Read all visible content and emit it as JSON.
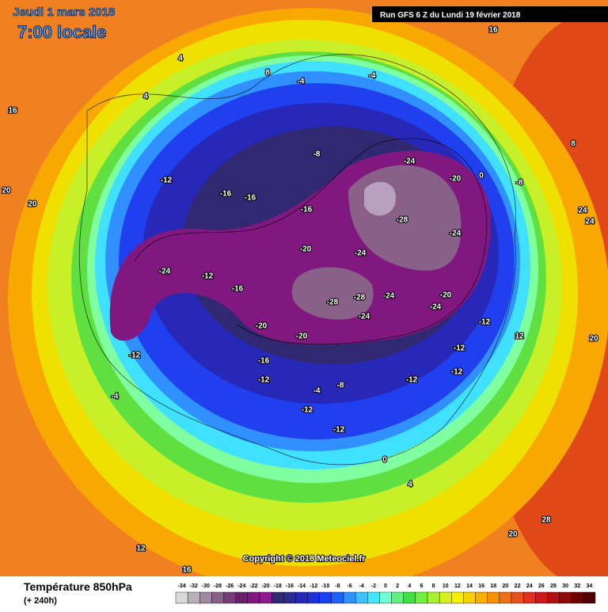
{
  "header": {
    "date": "Jeudi 1 mars 2018",
    "time": "7:00 locale",
    "run": "Run GFS 6 Z du Lundi 19 février 2018"
  },
  "copyright": "Copyright © 2018 Meteociel.fr",
  "footer": {
    "title": "Température 850hPa",
    "lead": "(+ 240h)"
  },
  "scale": {
    "values": [
      -34,
      -32,
      -30,
      -28,
      -26,
      -24,
      -22,
      -20,
      -18,
      -16,
      -14,
      -12,
      -10,
      -8,
      -6,
      -4,
      -2,
      0,
      2,
      4,
      6,
      8,
      10,
      12,
      14,
      16,
      18,
      20,
      22,
      24,
      26,
      28,
      30,
      32,
      34
    ],
    "colors": [
      "#d8d8d8",
      "#b8b0b8",
      "#a088a0",
      "#886088",
      "#783c78",
      "#682068",
      "#801880",
      "#901890",
      "#302870",
      "#2c2c90",
      "#2828b8",
      "#2030d8",
      "#1840f0",
      "#2060ff",
      "#3090ff",
      "#40c0ff",
      "#40e8ff",
      "#70ffd0",
      "#60f080",
      "#40e040",
      "#70f040",
      "#a8f030",
      "#d8f020",
      "#f8f000",
      "#f8d000",
      "#f8b000",
      "#f89000",
      "#f07018",
      "#e85020",
      "#e03020",
      "#d01818",
      "#b01010",
      "#900808",
      "#700000",
      "#500000"
    ]
  },
  "contour_labels": [
    -24,
    -20,
    -28,
    -24,
    -16,
    -20,
    -24,
    -12,
    -16,
    -24,
    -28,
    -28,
    -24,
    -24,
    -24,
    -20,
    -20,
    -20,
    -16,
    -12,
    -12,
    -12,
    -12,
    -12,
    -8,
    -4,
    -12,
    -12,
    -12,
    -4,
    16,
    4,
    4,
    20,
    20,
    20,
    24,
    24,
    28,
    20,
    12,
    16,
    16,
    8,
    -4,
    -4,
    0,
    -8,
    0,
    4,
    -16,
    -8,
    -12,
    -16,
    12,
    8
  ]
}
